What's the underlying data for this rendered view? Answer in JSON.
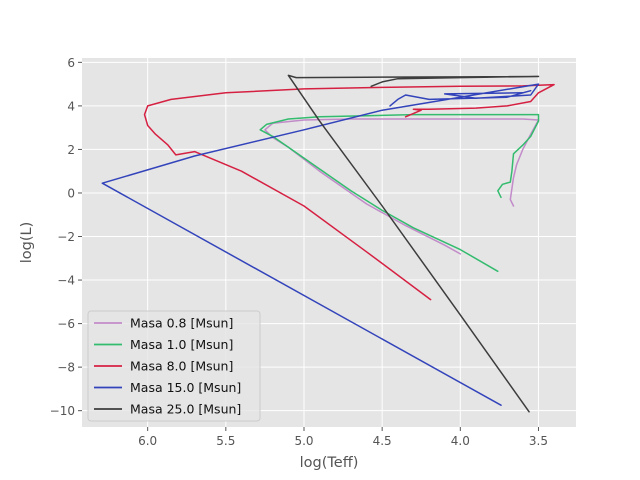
{
  "chart_data": {
    "type": "line",
    "title": "",
    "xlabel": "log(Teff)",
    "ylabel": "log(L)",
    "xlim": [
      6.42,
      3.26
    ],
    "ylim": [
      -10.75,
      6.2
    ],
    "x_inverted": true,
    "xticks": [
      6.0,
      5.5,
      5.0,
      4.5,
      4.0,
      3.5
    ],
    "xtick_labels": [
      "6.0",
      "5.5",
      "5.0",
      "4.5",
      "4.0",
      "3.5"
    ],
    "yticks": [
      6,
      4,
      2,
      0,
      -2,
      -4,
      -6,
      -8,
      -10
    ],
    "ytick_labels": [
      "6",
      "4",
      "2",
      "0",
      "−2",
      "−4",
      "−6",
      "−8",
      "−10"
    ],
    "grid": true,
    "legend_position": "lower-left",
    "series": [
      {
        "name": "Masa 0.8 [Msun]",
        "color": "#c28bc9",
        "points": [
          [
            3.66,
            -0.6
          ],
          [
            3.68,
            -0.3
          ],
          [
            3.67,
            0.2
          ],
          [
            3.66,
            0.7
          ],
          [
            3.64,
            1.3
          ],
          [
            3.6,
            2.0
          ],
          [
            3.55,
            2.7
          ],
          [
            3.5,
            3.35
          ],
          [
            3.6,
            3.4
          ],
          [
            3.8,
            3.4
          ],
          [
            4.2,
            3.4
          ],
          [
            4.7,
            3.4
          ],
          [
            5.0,
            3.35
          ],
          [
            5.2,
            3.2
          ],
          [
            5.25,
            2.9
          ],
          [
            5.2,
            2.55
          ],
          [
            5.1,
            2.1
          ],
          [
            4.9,
            1.0
          ],
          [
            4.6,
            -0.5
          ],
          [
            4.35,
            -1.5
          ],
          [
            4.1,
            -2.4
          ],
          [
            4.0,
            -2.8
          ]
        ]
      },
      {
        "name": "Masa 1.0 [Msun]",
        "color": "#33bb6e",
        "points": [
          [
            3.74,
            -0.2
          ],
          [
            3.76,
            0.1
          ],
          [
            3.73,
            0.4
          ],
          [
            3.68,
            0.5
          ],
          [
            3.67,
            1.0
          ],
          [
            3.66,
            1.8
          ],
          [
            3.6,
            2.2
          ],
          [
            3.55,
            2.6
          ],
          [
            3.5,
            3.3
          ],
          [
            3.5,
            3.6
          ],
          [
            3.7,
            3.6
          ],
          [
            4.0,
            3.6
          ],
          [
            4.3,
            3.6
          ],
          [
            4.6,
            3.55
          ],
          [
            4.9,
            3.5
          ],
          [
            5.1,
            3.4
          ],
          [
            5.24,
            3.15
          ],
          [
            5.28,
            2.9
          ],
          [
            5.2,
            2.6
          ],
          [
            5.1,
            2.1
          ],
          [
            4.9,
            1.1
          ],
          [
            4.7,
            0.1
          ],
          [
            4.5,
            -0.8
          ],
          [
            4.3,
            -1.6
          ],
          [
            4.0,
            -2.6
          ],
          [
            3.76,
            -3.6
          ]
        ]
      },
      {
        "name": "Masa 8.0 [Msun]",
        "color": "#d62042",
        "points": [
          [
            4.19,
            -4.9
          ],
          [
            4.6,
            -2.7
          ],
          [
            5.0,
            -0.6
          ],
          [
            5.4,
            1.0
          ],
          [
            5.7,
            1.9
          ],
          [
            5.82,
            1.75
          ],
          [
            5.87,
            2.2
          ],
          [
            5.95,
            2.7
          ],
          [
            6.0,
            3.1
          ],
          [
            6.02,
            3.6
          ],
          [
            6.0,
            4.0
          ],
          [
            5.85,
            4.3
          ],
          [
            5.5,
            4.6
          ],
          [
            5.0,
            4.78
          ],
          [
            4.5,
            4.85
          ],
          [
            4.0,
            4.9
          ],
          [
            3.6,
            4.92
          ],
          [
            3.4,
            4.98
          ],
          [
            3.5,
            4.6
          ],
          [
            3.55,
            4.2
          ],
          [
            3.7,
            4.0
          ],
          [
            3.9,
            3.9
          ],
          [
            4.2,
            3.85
          ],
          [
            4.3,
            3.85
          ],
          [
            4.25,
            3.8
          ],
          [
            4.35,
            3.5
          ]
        ]
      },
      {
        "name": "Masa 15.0 [Msun]",
        "color": "#3344bb",
        "points": [
          [
            3.74,
            -9.75
          ],
          [
            6.29,
            0.45
          ],
          [
            5.7,
            1.7
          ],
          [
            5.0,
            2.9
          ],
          [
            4.5,
            3.8
          ],
          [
            4.0,
            4.4
          ],
          [
            3.5,
            5.0
          ],
          [
            3.55,
            4.5
          ],
          [
            3.9,
            4.35
          ],
          [
            4.1,
            4.55
          ],
          [
            3.6,
            4.6
          ],
          [
            3.55,
            4.7
          ],
          [
            3.7,
            4.4
          ],
          [
            4.2,
            4.3
          ],
          [
            4.35,
            4.5
          ],
          [
            4.4,
            4.3
          ],
          [
            4.45,
            4.0
          ]
        ]
      },
      {
        "name": "Masa 25.0 [Msun]",
        "color": "#3d3d3d",
        "points": [
          [
            3.56,
            -10.05
          ],
          [
            4.0,
            -5.6
          ],
          [
            4.5,
            -0.6
          ],
          [
            4.9,
            3.3
          ],
          [
            5.1,
            5.4
          ],
          [
            5.05,
            5.3
          ],
          [
            4.6,
            5.32
          ],
          [
            4.0,
            5.33
          ],
          [
            3.5,
            5.35
          ],
          [
            4.0,
            5.3
          ],
          [
            4.4,
            5.25
          ],
          [
            4.5,
            5.1
          ],
          [
            4.57,
            4.9
          ]
        ]
      }
    ]
  }
}
